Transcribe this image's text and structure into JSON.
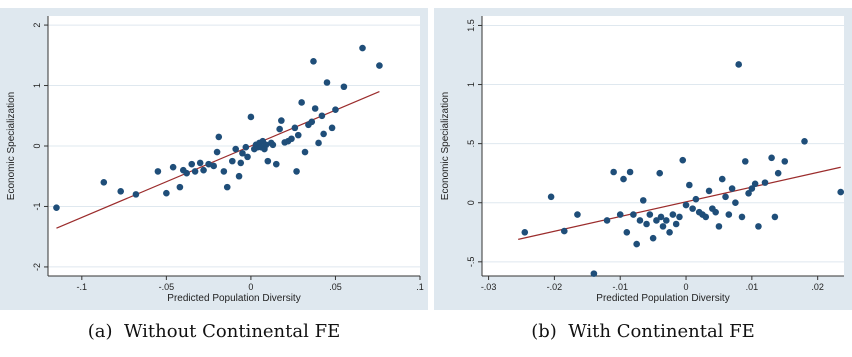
{
  "chart_data": [
    {
      "type": "scatter",
      "panel": "a",
      "caption": "(a)  Without Continental FE",
      "xlabel": "Predicted Population Diversity",
      "ylabel": "Economic Specialization",
      "xlim": [
        -0.12,
        0.1
      ],
      "ylim": [
        -2.15,
        2.15
      ],
      "xticks": [
        -0.1,
        -0.05,
        0,
        0.05,
        0.1
      ],
      "xtick_labels": [
        "-.1",
        "-.05",
        "0",
        ".05",
        ".1"
      ],
      "yticks": [
        -2,
        -1,
        0,
        1,
        2
      ],
      "ytick_labels": [
        "-2",
        "-1",
        "0",
        "1",
        "2"
      ],
      "grid": "horizontal",
      "fit_line": {
        "x": [
          -0.115,
          0.076
        ],
        "y": [
          -1.36,
          0.9
        ]
      },
      "colors": {
        "points": "#1f4e79",
        "fit": "#9b2c2c",
        "plot_bg": "#dfe8ef",
        "frame_bg": "#ffffff"
      },
      "points": [
        {
          "x": -0.115,
          "y": -1.02
        },
        {
          "x": -0.087,
          "y": -0.6
        },
        {
          "x": -0.077,
          "y": -0.75
        },
        {
          "x": -0.068,
          "y": -0.8
        },
        {
          "x": -0.055,
          "y": -0.42
        },
        {
          "x": -0.05,
          "y": -0.78
        },
        {
          "x": -0.046,
          "y": -0.35
        },
        {
          "x": -0.042,
          "y": -0.68
        },
        {
          "x": -0.04,
          "y": -0.4
        },
        {
          "x": -0.038,
          "y": -0.45
        },
        {
          "x": -0.035,
          "y": -0.3
        },
        {
          "x": -0.033,
          "y": -0.42
        },
        {
          "x": -0.03,
          "y": -0.28
        },
        {
          "x": -0.028,
          "y": -0.4
        },
        {
          "x": -0.025,
          "y": -0.3
        },
        {
          "x": -0.022,
          "y": -0.33
        },
        {
          "x": -0.02,
          "y": -0.1
        },
        {
          "x": -0.019,
          "y": 0.15
        },
        {
          "x": -0.016,
          "y": -0.42
        },
        {
          "x": -0.014,
          "y": -0.68
        },
        {
          "x": -0.011,
          "y": -0.25
        },
        {
          "x": -0.009,
          "y": -0.05
        },
        {
          "x": -0.007,
          "y": -0.5
        },
        {
          "x": -0.006,
          "y": -0.28
        },
        {
          "x": -0.005,
          "y": -0.12
        },
        {
          "x": -0.003,
          "y": -0.02
        },
        {
          "x": -0.002,
          "y": -0.18
        },
        {
          "x": 0.0,
          "y": 0.48
        },
        {
          "x": 0.002,
          "y": -0.05
        },
        {
          "x": 0.003,
          "y": 0.02
        },
        {
          "x": 0.004,
          "y": -0.02
        },
        {
          "x": 0.005,
          "y": 0.05
        },
        {
          "x": 0.006,
          "y": -0.02
        },
        {
          "x": 0.007,
          "y": 0.08
        },
        {
          "x": 0.008,
          "y": -0.05
        },
        {
          "x": 0.009,
          "y": 0.02
        },
        {
          "x": 0.01,
          "y": -0.25
        },
        {
          "x": 0.012,
          "y": 0.05
        },
        {
          "x": 0.013,
          "y": 0.02
        },
        {
          "x": 0.015,
          "y": -0.3
        },
        {
          "x": 0.017,
          "y": 0.28
        },
        {
          "x": 0.018,
          "y": 0.42
        },
        {
          "x": 0.02,
          "y": 0.06
        },
        {
          "x": 0.022,
          "y": 0.08
        },
        {
          "x": 0.024,
          "y": 0.12
        },
        {
          "x": 0.026,
          "y": 0.3
        },
        {
          "x": 0.027,
          "y": -0.42
        },
        {
          "x": 0.028,
          "y": 0.18
        },
        {
          "x": 0.03,
          "y": 0.72
        },
        {
          "x": 0.032,
          "y": -0.1
        },
        {
          "x": 0.034,
          "y": 0.35
        },
        {
          "x": 0.036,
          "y": 0.4
        },
        {
          "x": 0.037,
          "y": 1.4
        },
        {
          "x": 0.038,
          "y": 0.62
        },
        {
          "x": 0.04,
          "y": 0.05
        },
        {
          "x": 0.042,
          "y": 0.5
        },
        {
          "x": 0.043,
          "y": 0.2
        },
        {
          "x": 0.045,
          "y": 1.05
        },
        {
          "x": 0.048,
          "y": 0.3
        },
        {
          "x": 0.05,
          "y": 0.6
        },
        {
          "x": 0.055,
          "y": 0.98
        },
        {
          "x": 0.066,
          "y": 1.62
        },
        {
          "x": 0.076,
          "y": 1.33
        }
      ]
    },
    {
      "type": "scatter",
      "panel": "b",
      "caption": "(b)  With Continental FE",
      "xlabel": "Predicted Population Diversity",
      "ylabel": "Economic Specialization",
      "xlim": [
        -0.031,
        0.024
      ],
      "ylim": [
        -0.62,
        1.58
      ],
      "xticks": [
        -0.03,
        -0.02,
        -0.01,
        0,
        0.01,
        0.02
      ],
      "xtick_labels": [
        "-.03",
        "-.02",
        "-.01",
        "0",
        ".01",
        ".02"
      ],
      "yticks": [
        -0.5,
        0,
        0.5,
        1,
        1.5
      ],
      "ytick_labels": [
        "-.5",
        "0",
        ".5",
        "1",
        "1.5"
      ],
      "grid": "horizontal",
      "fit_line": {
        "x": [
          -0.0255,
          0.0235
        ],
        "y": [
          -0.31,
          0.3
        ]
      },
      "colors": {
        "points": "#1f4e79",
        "fit": "#9b2c2c",
        "plot_bg": "#dfe8ef",
        "frame_bg": "#ffffff"
      },
      "points": [
        {
          "x": -0.0245,
          "y": -0.25
        },
        {
          "x": -0.0205,
          "y": 0.05
        },
        {
          "x": -0.0185,
          "y": -0.24
        },
        {
          "x": -0.0165,
          "y": -0.1
        },
        {
          "x": -0.014,
          "y": -0.6
        },
        {
          "x": -0.012,
          "y": -0.15
        },
        {
          "x": -0.011,
          "y": 0.26
        },
        {
          "x": -0.01,
          "y": -0.1
        },
        {
          "x": -0.0095,
          "y": 0.2
        },
        {
          "x": -0.009,
          "y": -0.25
        },
        {
          "x": -0.0085,
          "y": 0.26
        },
        {
          "x": -0.008,
          "y": -0.1
        },
        {
          "x": -0.0075,
          "y": -0.35
        },
        {
          "x": -0.007,
          "y": -0.15
        },
        {
          "x": -0.0065,
          "y": 0.02
        },
        {
          "x": -0.006,
          "y": -0.18
        },
        {
          "x": -0.0055,
          "y": -0.1
        },
        {
          "x": -0.005,
          "y": -0.3
        },
        {
          "x": -0.0045,
          "y": -0.15
        },
        {
          "x": -0.004,
          "y": 0.25
        },
        {
          "x": -0.0038,
          "y": -0.12
        },
        {
          "x": -0.0035,
          "y": -0.2
        },
        {
          "x": -0.003,
          "y": -0.15
        },
        {
          "x": -0.0025,
          "y": -0.25
        },
        {
          "x": -0.002,
          "y": -0.1
        },
        {
          "x": -0.0015,
          "y": -0.18
        },
        {
          "x": -0.001,
          "y": -0.12
        },
        {
          "x": -0.0005,
          "y": 0.36
        },
        {
          "x": 0.0,
          "y": -0.02
        },
        {
          "x": 0.0005,
          "y": 0.15
        },
        {
          "x": 0.001,
          "y": -0.05
        },
        {
          "x": 0.0015,
          "y": 0.03
        },
        {
          "x": 0.002,
          "y": -0.08
        },
        {
          "x": 0.0025,
          "y": -0.1
        },
        {
          "x": 0.003,
          "y": -0.12
        },
        {
          "x": 0.0035,
          "y": 0.1
        },
        {
          "x": 0.004,
          "y": -0.05
        },
        {
          "x": 0.0045,
          "y": -0.08
        },
        {
          "x": 0.005,
          "y": -0.2
        },
        {
          "x": 0.0055,
          "y": 0.2
        },
        {
          "x": 0.006,
          "y": 0.05
        },
        {
          "x": 0.0065,
          "y": -0.1
        },
        {
          "x": 0.007,
          "y": 0.12
        },
        {
          "x": 0.0075,
          "y": 0.0
        },
        {
          "x": 0.008,
          "y": 1.17
        },
        {
          "x": 0.0085,
          "y": -0.12
        },
        {
          "x": 0.009,
          "y": 0.35
        },
        {
          "x": 0.0095,
          "y": 0.08
        },
        {
          "x": 0.01,
          "y": 0.12
        },
        {
          "x": 0.0105,
          "y": 0.16
        },
        {
          "x": 0.011,
          "y": -0.2
        },
        {
          "x": 0.012,
          "y": 0.17
        },
        {
          "x": 0.013,
          "y": 0.38
        },
        {
          "x": 0.0135,
          "y": -0.12
        },
        {
          "x": 0.014,
          "y": 0.25
        },
        {
          "x": 0.015,
          "y": 0.35
        },
        {
          "x": 0.018,
          "y": 0.52
        },
        {
          "x": 0.0235,
          "y": 0.09
        }
      ]
    }
  ]
}
